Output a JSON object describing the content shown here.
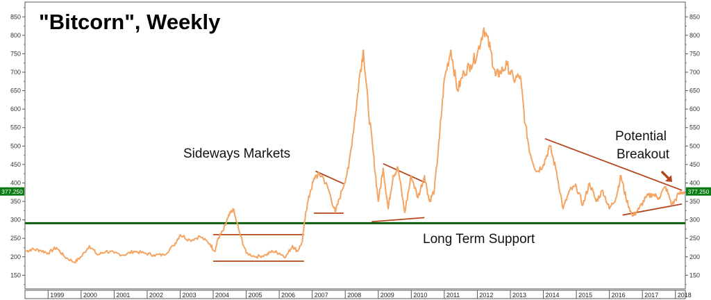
{
  "chart_data": {
    "type": "line",
    "title": "\"Bitcorn\", Weekly",
    "yticks": [
      150,
      200,
      250,
      300,
      350,
      400,
      450,
      500,
      550,
      600,
      650,
      700,
      750,
      800,
      850
    ],
    "ylim": [
      113,
      890
    ],
    "xlim": [
      1998.3,
      2018.3
    ],
    "x_tick_labels": [
      "1999",
      "2000",
      "2001",
      "2002",
      "2003",
      "2004",
      "2005",
      "2006",
      "2007",
      "2008",
      "2009",
      "2010",
      "2011",
      "2012",
      "2013",
      "2014",
      "2015",
      "2016",
      "2017",
      "2018"
    ],
    "last_value_label": "377.250",
    "grid": false,
    "series": [
      {
        "color": "#f4a460",
        "x": [
          1998.33,
          1998.5,
          1998.75,
          1999.0,
          1999.25,
          1999.5,
          1999.8,
          2000.0,
          2000.25,
          2000.5,
          2000.75,
          2001.0,
          2001.3,
          2001.6,
          2001.9,
          2002.2,
          2002.5,
          2002.8,
          2003.0,
          2003.3,
          2003.6,
          2003.9,
          2004.05,
          2004.15,
          2004.3,
          2004.45,
          2004.6,
          2004.8,
          2005.0,
          2005.3,
          2005.6,
          2005.8,
          2006.0,
          2006.2,
          2006.4,
          2006.55,
          2006.7,
          2006.8,
          2006.95,
          2007.1,
          2007.3,
          2007.5,
          2007.7,
          2007.9,
          2008.1,
          2008.3,
          2008.45,
          2008.55,
          2008.7,
          2008.85,
          2009.0,
          2009.15,
          2009.3,
          2009.45,
          2009.6,
          2009.8,
          2010.0,
          2010.2,
          2010.4,
          2010.55,
          2010.7,
          2010.85,
          2011.0,
          2011.2,
          2011.4,
          2011.6,
          2011.8,
          2012.0,
          2012.2,
          2012.4,
          2012.55,
          2012.7,
          2012.9,
          2013.1,
          2013.3,
          2013.45,
          2013.6,
          2013.8,
          2014.0,
          2014.2,
          2014.4,
          2014.6,
          2014.8,
          2015.0,
          2015.2,
          2015.4,
          2015.6,
          2015.8,
          2016.0,
          2016.2,
          2016.35,
          2016.5,
          2016.7,
          2016.9,
          2017.1,
          2017.3,
          2017.5,
          2017.7,
          2017.9,
          2018.1,
          2018.27
        ],
        "y": [
          215,
          220,
          218,
          210,
          225,
          200,
          185,
          200,
          230,
          205,
          215,
          210,
          205,
          215,
          210,
          205,
          205,
          230,
          260,
          245,
          255,
          235,
          215,
          250,
          270,
          305,
          330,
          265,
          210,
          200,
          205,
          215,
          210,
          200,
          230,
          215,
          240,
          320,
          380,
          420,
          420,
          380,
          320,
          380,
          440,
          580,
          700,
          760,
          600,
          480,
          350,
          440,
          330,
          420,
          440,
          320,
          420,
          360,
          420,
          350,
          380,
          520,
          680,
          760,
          650,
          700,
          720,
          750,
          820,
          760,
          690,
          700,
          720,
          680,
          690,
          560,
          480,
          430,
          450,
          500,
          430,
          330,
          380,
          390,
          340,
          400,
          350,
          380,
          330,
          360,
          420,
          360,
          310,
          330,
          360,
          370,
          360,
          390,
          340,
          370,
          377
        ]
      }
    ],
    "annotations": {
      "sideways": "Sideways Markets",
      "support": "Long Term Support",
      "potential": "Potential",
      "breakout": "Breakout"
    },
    "support_level": 291,
    "trendlines": [
      {
        "x": [
          2004.0,
          2006.75
        ],
        "y": [
          260,
          260
        ]
      },
      {
        "x": [
          2004.0,
          2006.75
        ],
        "y": [
          188,
          188
        ]
      },
      {
        "x": [
          2007.1,
          2007.95
        ],
        "y": [
          432,
          398
        ]
      },
      {
        "x": [
          2007.05,
          2007.95
        ],
        "y": [
          318,
          318
        ]
      },
      {
        "x": [
          2009.15,
          2010.4
        ],
        "y": [
          452,
          402
        ]
      },
      {
        "x": [
          2008.8,
          2010.4
        ],
        "y": [
          295,
          306
        ]
      },
      {
        "x": [
          2014.05,
          2018.2
        ],
        "y": [
          520,
          380
        ]
      },
      {
        "x": [
          2016.4,
          2018.2
        ],
        "y": [
          313,
          343
        ]
      }
    ]
  }
}
